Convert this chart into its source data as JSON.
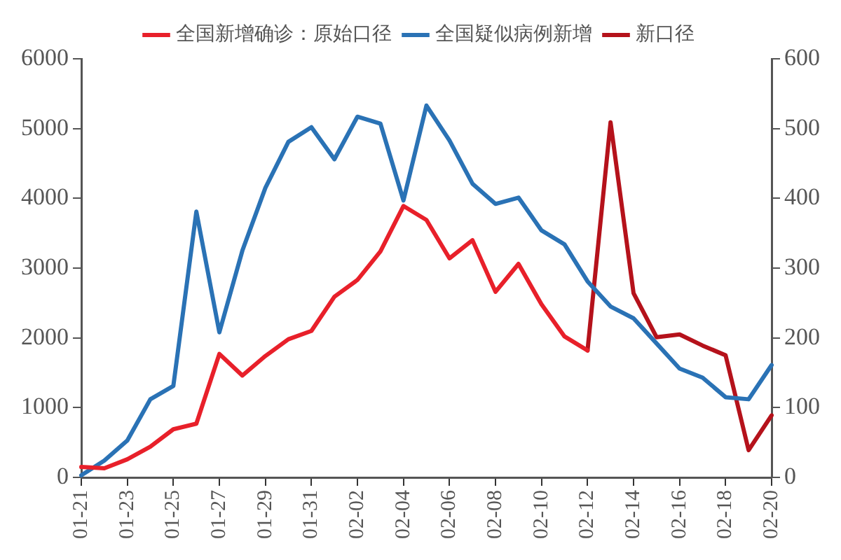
{
  "chart_data": {
    "type": "line",
    "categories": [
      "01-21",
      null,
      "01-23",
      null,
      "01-25",
      null,
      "01-27",
      null,
      "01-29",
      null,
      "01-31",
      null,
      "02-02",
      null,
      "02-04",
      null,
      "02-06",
      null,
      "02-08",
      null,
      "02-10",
      null,
      "02-12",
      null,
      "02-14",
      null,
      "02-16",
      null,
      "02-18",
      null,
      "02-20"
    ],
    "series": [
      {
        "name": "全国新增确诊：原始口径",
        "color": "#e8202a",
        "values": [
          150,
          130,
          260,
          440,
          690,
          770,
          1770,
          1460,
          1740,
          1980,
          2100,
          2590,
          2830,
          3240,
          3890,
          3690,
          3140,
          3400,
          2660,
          3060,
          2480,
          2020,
          1820,
          null,
          null,
          null,
          null,
          null,
          null,
          null,
          null
        ]
      },
      {
        "name": "全国疑似病例新增",
        "color": "#2a72b5",
        "values": [
          30,
          240,
          530,
          1120,
          1310,
          3810,
          2080,
          3250,
          4150,
          4810,
          5020,
          4560,
          5170,
          5070,
          3970,
          5330,
          4830,
          4210,
          3920,
          4010,
          3540,
          3340,
          2810,
          2450,
          2280,
          1920,
          1560,
          1430,
          1150,
          1120,
          1610
        ]
      },
      {
        "name": "新口径",
        "color": "#b5121b",
        "values": [
          null,
          null,
          null,
          null,
          null,
          null,
          null,
          null,
          null,
          null,
          null,
          null,
          null,
          null,
          null,
          null,
          null,
          null,
          null,
          null,
          null,
          null,
          1820,
          5090,
          2640,
          2010,
          2050,
          1890,
          1750,
          390,
          890
        ]
      }
    ],
    "ylim": [
      0,
      6000
    ],
    "yticks": [
      0,
      1000,
      2000,
      3000,
      4000,
      5000,
      6000
    ],
    "y2lim": [
      0,
      600
    ],
    "y2ticks": [
      0,
      100,
      200,
      300,
      400,
      500,
      600
    ],
    "legend": "top",
    "grid": false,
    "marker": "none",
    "line_style": "solid"
  }
}
